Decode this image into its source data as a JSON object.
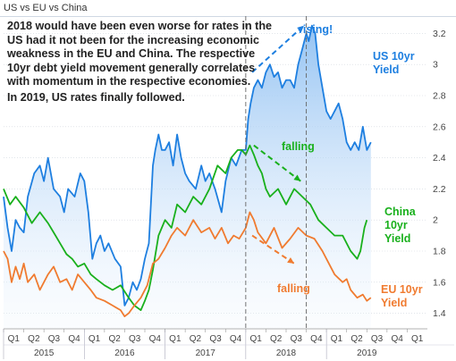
{
  "title": "US vs EU vs China",
  "annotation": {
    "paragraph1": "2018 would have been even worse for rates in the US had it not been for the increasing economic weakness in the EU and China.  The respective 10yr debt yield movement generally correlates with momentum in the respective economies.",
    "paragraph2": "In 2019, US rates finally followed."
  },
  "callouts": {
    "rising": "rising!",
    "falling_china": "falling",
    "falling_eu": "falling"
  },
  "labels": {
    "us": "US 10yr Yield",
    "china": "China 10yr Yield",
    "eu": "EU 10yr Yield"
  },
  "colors": {
    "us": "#1e7fe0",
    "china": "#19b01c",
    "eu": "#f07b30",
    "fill_top": "#9cc8f3",
    "grid": "#d0d6de"
  },
  "chart_data": {
    "type": "line",
    "title": "US vs EU vs China",
    "xlabel": "",
    "ylabel": "",
    "ylim": [
      1.3,
      3.3
    ],
    "y_ticks": [
      1.4,
      1.6,
      1.8,
      2,
      2.2,
      2.4,
      2.6,
      2.8,
      3,
      3.2
    ],
    "quarters": [
      "Q1",
      "Q2",
      "Q3",
      "Q4",
      "Q1",
      "Q2",
      "Q3",
      "Q4",
      "Q1",
      "Q2",
      "Q3",
      "Q4",
      "Q1",
      "Q2",
      "Q3",
      "Q4",
      "Q1",
      "Q2",
      "Q3",
      "Q4",
      "Q1"
    ],
    "years": [
      "2015",
      "2016",
      "2017",
      "2018",
      "2019"
    ],
    "x_range": [
      2015.0,
      2020.25
    ],
    "highlight_period": [
      2018.0,
      2018.75
    ],
    "series": [
      {
        "name": "US 10yr Yield",
        "key": "us",
        "x": [
          2015.0,
          2015.05,
          2015.1,
          2015.15,
          2015.2,
          2015.25,
          2015.3,
          2015.38,
          2015.45,
          2015.5,
          2015.55,
          2015.62,
          2015.7,
          2015.75,
          2015.8,
          2015.88,
          2015.95,
          2016.0,
          2016.05,
          2016.1,
          2016.15,
          2016.2,
          2016.25,
          2016.3,
          2016.38,
          2016.45,
          2016.5,
          2016.55,
          2016.6,
          2016.65,
          2016.7,
          2016.75,
          2016.8,
          2016.85,
          2016.88,
          2016.92,
          2016.96,
          2017.0,
          2017.05,
          2017.1,
          2017.15,
          2017.2,
          2017.25,
          2017.3,
          2017.38,
          2017.45,
          2017.5,
          2017.55,
          2017.62,
          2017.7,
          2017.75,
          2017.82,
          2017.88,
          2017.95,
          2018.0,
          2018.03,
          2018.06,
          2018.1,
          2018.15,
          2018.2,
          2018.25,
          2018.3,
          2018.35,
          2018.4,
          2018.45,
          2018.5,
          2018.55,
          2018.6,
          2018.65,
          2018.7,
          2018.75,
          2018.78,
          2018.82,
          2018.86,
          2018.9,
          2018.95,
          2019.0,
          2019.05,
          2019.1,
          2019.15,
          2019.2,
          2019.25,
          2019.3,
          2019.35,
          2019.4,
          2019.45,
          2019.5,
          2019.55
        ],
        "y": [
          2.15,
          1.95,
          1.8,
          2.0,
          1.95,
          1.92,
          2.15,
          2.3,
          2.35,
          2.25,
          2.4,
          2.2,
          2.15,
          2.05,
          2.2,
          2.15,
          2.3,
          2.25,
          2.05,
          1.75,
          1.85,
          1.9,
          1.8,
          1.85,
          1.75,
          1.7,
          1.45,
          1.5,
          1.6,
          1.55,
          1.62,
          1.75,
          1.85,
          2.35,
          2.45,
          2.55,
          2.45,
          2.45,
          2.5,
          2.35,
          2.55,
          2.4,
          2.3,
          2.25,
          2.2,
          2.35,
          2.25,
          2.3,
          2.2,
          2.05,
          2.25,
          2.4,
          2.35,
          2.45,
          2.45,
          2.65,
          2.75,
          2.85,
          2.9,
          2.85,
          2.95,
          3.0,
          2.92,
          2.95,
          2.85,
          2.9,
          2.9,
          2.85,
          3.0,
          3.1,
          3.2,
          3.15,
          3.25,
          3.2,
          3.0,
          2.85,
          2.7,
          2.65,
          2.7,
          2.75,
          2.65,
          2.5,
          2.45,
          2.5,
          2.45,
          2.6,
          2.45,
          2.5
        ]
      },
      {
        "name": "China 10yr Yield",
        "key": "china",
        "x": [
          2015.0,
          2015.08,
          2015.15,
          2015.25,
          2015.35,
          2015.45,
          2015.55,
          2015.62,
          2015.7,
          2015.78,
          2015.85,
          2015.92,
          2016.0,
          2016.08,
          2016.15,
          2016.25,
          2016.35,
          2016.45,
          2016.55,
          2016.62,
          2016.7,
          2016.75,
          2016.8,
          2016.85,
          2016.92,
          2017.0,
          2017.08,
          2017.15,
          2017.25,
          2017.35,
          2017.45,
          2017.55,
          2017.65,
          2017.75,
          2017.82,
          2017.9,
          2017.95,
          2018.0,
          2018.05,
          2018.1,
          2018.15,
          2018.2,
          2018.25,
          2018.3,
          2018.4,
          2018.5,
          2018.6,
          2018.7,
          2018.8,
          2018.9,
          2019.0,
          2019.1,
          2019.2,
          2019.3,
          2019.38,
          2019.42,
          2019.47,
          2019.5
        ],
        "y": [
          2.2,
          2.1,
          2.15,
          2.08,
          1.98,
          2.05,
          1.98,
          1.92,
          1.85,
          1.78,
          1.75,
          1.7,
          1.72,
          1.65,
          1.62,
          1.58,
          1.55,
          1.58,
          1.5,
          1.45,
          1.42,
          1.48,
          1.55,
          1.68,
          1.9,
          2.0,
          1.95,
          2.1,
          2.05,
          2.15,
          2.1,
          2.2,
          2.35,
          2.3,
          2.4,
          2.45,
          2.45,
          2.42,
          2.48,
          2.42,
          2.35,
          2.3,
          2.2,
          2.15,
          2.2,
          2.1,
          2.2,
          2.15,
          2.1,
          2.0,
          1.95,
          1.9,
          1.9,
          1.8,
          1.75,
          1.8,
          1.95,
          2.0
        ]
      },
      {
        "name": "EU 10yr Yield",
        "key": "eu",
        "x": [
          2015.0,
          2015.05,
          2015.1,
          2015.15,
          2015.2,
          2015.25,
          2015.3,
          2015.38,
          2015.45,
          2015.55,
          2015.62,
          2015.7,
          2015.78,
          2015.85,
          2015.92,
          2016.0,
          2016.08,
          2016.15,
          2016.25,
          2016.35,
          2016.45,
          2016.5,
          2016.55,
          2016.62,
          2016.7,
          2016.78,
          2016.85,
          2016.92,
          2017.0,
          2017.08,
          2017.15,
          2017.25,
          2017.35,
          2017.45,
          2017.55,
          2017.62,
          2017.7,
          2017.78,
          2017.85,
          2017.92,
          2018.0,
          2018.05,
          2018.1,
          2018.15,
          2018.25,
          2018.35,
          2018.45,
          2018.55,
          2018.65,
          2018.75,
          2018.85,
          2018.95,
          2019.0,
          2019.1,
          2019.2,
          2019.25,
          2019.3,
          2019.38,
          2019.45,
          2019.5,
          2019.55
        ],
        "y": [
          1.8,
          1.75,
          1.6,
          1.7,
          1.62,
          1.72,
          1.6,
          1.65,
          1.55,
          1.65,
          1.7,
          1.6,
          1.62,
          1.55,
          1.65,
          1.6,
          1.55,
          1.5,
          1.48,
          1.45,
          1.42,
          1.38,
          1.4,
          1.45,
          1.5,
          1.58,
          1.72,
          1.75,
          1.82,
          1.9,
          1.95,
          1.9,
          2.0,
          1.92,
          1.95,
          1.88,
          1.95,
          1.85,
          1.9,
          1.88,
          1.95,
          2.05,
          2.0,
          1.92,
          1.85,
          1.95,
          1.82,
          1.88,
          1.95,
          1.9,
          1.88,
          1.8,
          1.75,
          1.65,
          1.6,
          1.62,
          1.55,
          1.5,
          1.52,
          1.48,
          1.5
        ]
      }
    ]
  }
}
